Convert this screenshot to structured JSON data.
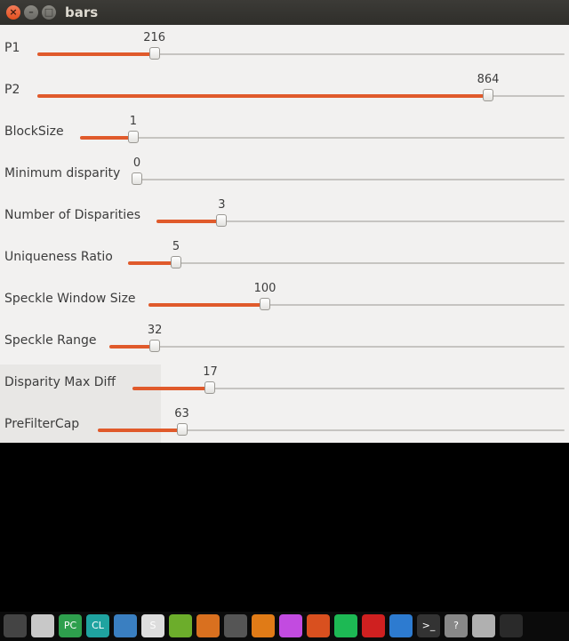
{
  "window": {
    "title": "bars",
    "buttons": {
      "close": "×",
      "minimize": "–",
      "maximize": "□"
    }
  },
  "trackbars": [
    {
      "label": "P1",
      "value": "216",
      "fraction": 0.222
    },
    {
      "label": "P2",
      "value": "864",
      "fraction": 0.855
    },
    {
      "label": "BlockSize",
      "value": "1",
      "fraction": 0.11
    },
    {
      "label": "Minimum disparity",
      "value": "0",
      "fraction": 0.0
    },
    {
      "label": "Number of Disparities",
      "value": "3",
      "fraction": 0.16
    },
    {
      "label": "Uniqueness Ratio",
      "value": "5",
      "fraction": 0.11
    },
    {
      "label": "Speckle Window Size",
      "value": "100",
      "fraction": 0.28
    },
    {
      "label": "Speckle Range",
      "value": "32",
      "fraction": 0.1
    },
    {
      "label": "Disparity Max Diff",
      "value": "17",
      "fraction": 0.18
    },
    {
      "label": "PreFilterCap",
      "value": "63",
      "fraction": 0.18
    }
  ],
  "dock": {
    "apps": [
      {
        "name": "app-1-icon",
        "color": "#444444",
        "glyph": ""
      },
      {
        "name": "screen-recorder-icon",
        "color": "#c8c8c8",
        "glyph": ""
      },
      {
        "name": "pycharm-icon",
        "color": "#2e9f4d",
        "glyph": "PC"
      },
      {
        "name": "clion-icon",
        "color": "#1fa3a0",
        "glyph": "CL"
      },
      {
        "name": "browser-icon",
        "color": "#3a7fc1",
        "glyph": ""
      },
      {
        "name": "sublime-icon",
        "color": "#dddddd",
        "glyph": "S"
      },
      {
        "name": "nvidia-icon",
        "color": "#6cad2b",
        "glyph": ""
      },
      {
        "name": "drop-icon",
        "color": "#d9701f",
        "glyph": ""
      },
      {
        "name": "tool-icon",
        "color": "#555555",
        "glyph": ""
      },
      {
        "name": "vlc-icon",
        "color": "#e07b17",
        "glyph": ""
      },
      {
        "name": "gem-icon",
        "color": "#c24be0",
        "glyph": ""
      },
      {
        "name": "matlab-icon",
        "color": "#d9501f",
        "glyph": ""
      },
      {
        "name": "spotify-icon",
        "color": "#1db954",
        "glyph": ""
      },
      {
        "name": "record-icon",
        "color": "#cf2020",
        "glyph": ""
      },
      {
        "name": "document-viewer-icon",
        "color": "#2d7bd0",
        "glyph": ""
      },
      {
        "name": "terminal-icon",
        "color": "#333333",
        "glyph": ">_"
      },
      {
        "name": "help-icon",
        "color": "#888888",
        "glyph": "?"
      },
      {
        "name": "camera-icon",
        "color": "#b0b0b0",
        "glyph": ""
      },
      {
        "name": "window-icon",
        "color": "#2a2a2a",
        "glyph": ""
      }
    ]
  }
}
